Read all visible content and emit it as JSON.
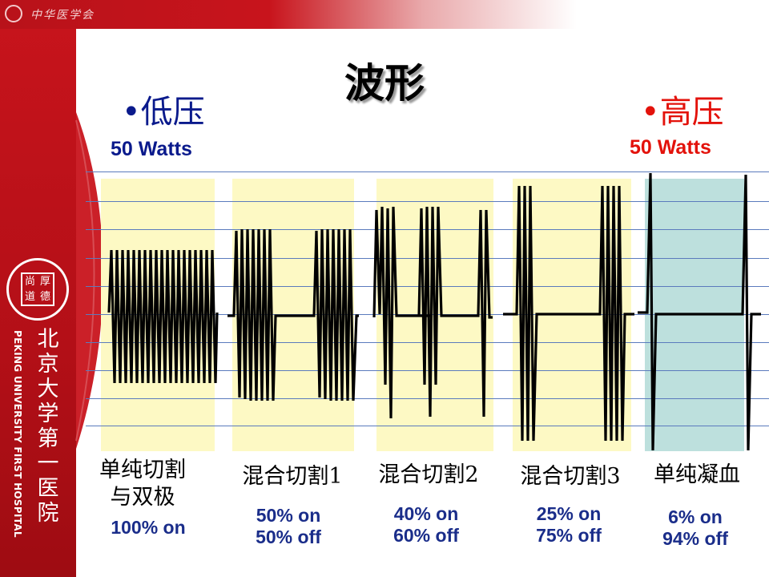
{
  "slide": {
    "title": "波形",
    "header_text": "中华医学会",
    "hospital": {
      "name_cn": "北京大学第一医院",
      "name_en": "PEKING UNIVERSITY FIRST HOSPITAL",
      "seal_chars": [
        "尚",
        "厚",
        "道",
        "德"
      ]
    }
  },
  "modes": {
    "low": {
      "label": "•低压",
      "watts": "50 Watts",
      "color": "#0a1a8c"
    },
    "high": {
      "label": "•高压",
      "watts": "50 Watts",
      "color": "#e3120b"
    }
  },
  "waveforms": [
    {
      "id": "pure-cut",
      "label_lines": [
        "单纯切割",
        "与双极"
      ],
      "duty_lines": [
        "100% on"
      ],
      "panel_color": "#fdf9c4"
    },
    {
      "id": "blend-1",
      "label_lines": [
        "混合切割1"
      ],
      "duty_lines": [
        "50% on",
        "50% off"
      ],
      "panel_color": "#fdf9c4"
    },
    {
      "id": "blend-2",
      "label_lines": [
        "混合切割2"
      ],
      "duty_lines": [
        "40% on",
        "60% off"
      ],
      "panel_color": "#fdf9c4"
    },
    {
      "id": "blend-3",
      "label_lines": [
        "混合切割3"
      ],
      "duty_lines": [
        "25% on",
        "75% off"
      ],
      "panel_color": "#fdf9c4"
    },
    {
      "id": "pure-coag",
      "label_lines": [
        "单纯凝血"
      ],
      "duty_lines": [
        "6% on",
        "94% off"
      ],
      "panel_color": "#bde0dd"
    }
  ],
  "colors": {
    "sidebar": "#c8141c",
    "grid_line": "#5b7bbd",
    "duty_text": "#1a2d8a"
  }
}
